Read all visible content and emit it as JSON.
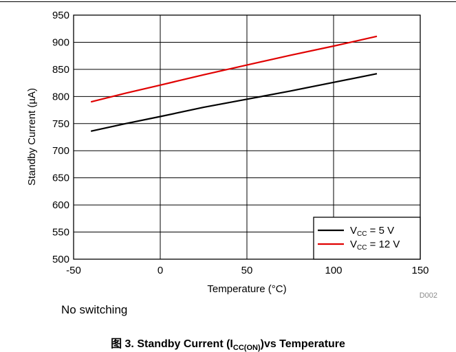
{
  "chart_data": {
    "type": "line",
    "xlabel": "Temperature (°C)",
    "ylabel": "Standby Current (µA)",
    "xlim": [
      -50,
      150
    ],
    "ylim": [
      500,
      950
    ],
    "xticks": [
      -50,
      0,
      50,
      100,
      150
    ],
    "yticks": [
      500,
      550,
      600,
      650,
      700,
      750,
      800,
      850,
      900,
      950
    ],
    "grid": true,
    "legend_position": "bottom-right",
    "series": [
      {
        "name_main": "V",
        "name_sub": "CC",
        "name_rest": " = 5 V",
        "color": "#000000",
        "x": [
          -40,
          -20,
          0,
          25,
          50,
          75,
          100,
          125
        ],
        "y": [
          736,
          750,
          763,
          780,
          795,
          810,
          826,
          842
        ]
      },
      {
        "name_main": "V",
        "name_sub": "CC",
        "name_rest": " = 12 V",
        "color": "#e00000",
        "x": [
          -40,
          -20,
          0,
          25,
          50,
          75,
          100,
          125
        ],
        "y": [
          790,
          806,
          821,
          840,
          858,
          876,
          893,
          911
        ]
      }
    ],
    "code_label": "D002",
    "note": "No switching",
    "caption": {
      "prefix": "图 3. Standby Current (I",
      "sub": "CC(ON)",
      "suffix": ")vs Temperature"
    }
  }
}
